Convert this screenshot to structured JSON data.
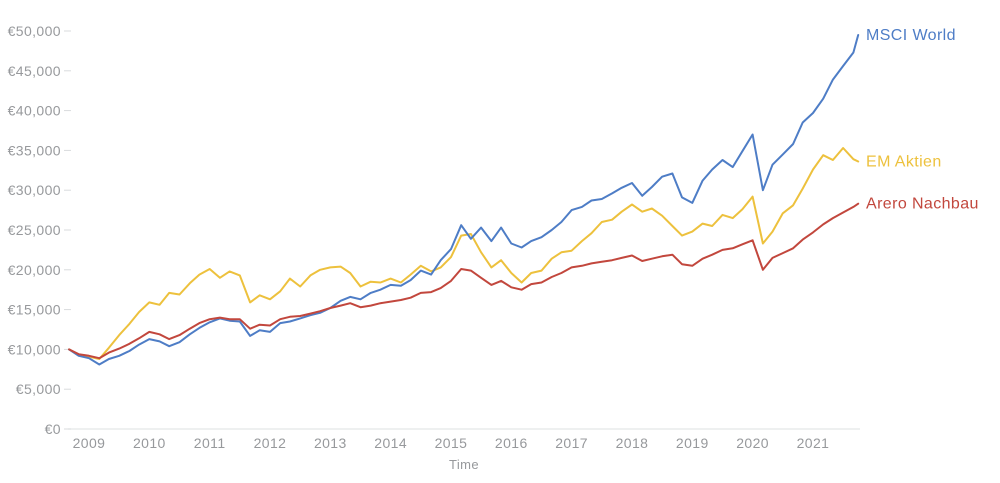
{
  "chart_data": {
    "type": "line",
    "title": "",
    "xlabel": "Time",
    "ylabel": "",
    "xlim": [
      2008.6,
      2021.8
    ],
    "ylim": [
      0,
      50000
    ],
    "grid": false,
    "legend_position": "right-end-of-line",
    "axis_color": "#e4e6e8",
    "tick_color": "#d9dbdd",
    "label_color": "#97999c",
    "xtick_values": [
      2009,
      2010,
      2011,
      2012,
      2013,
      2014,
      2015,
      2016,
      2017,
      2018,
      2019,
      2020,
      2021
    ],
    "xtick_labels": [
      "2009",
      "2010",
      "2011",
      "2012",
      "2013",
      "2014",
      "2015",
      "2016",
      "2017",
      "2018",
      "2019",
      "2020",
      "2021"
    ],
    "ytick_values": [
      0,
      5000,
      10000,
      15000,
      20000,
      25000,
      30000,
      35000,
      40000,
      45000,
      50000
    ],
    "ytick_labels": [
      "€0",
      "€5,000",
      "€10,000",
      "€15,000",
      "€20,000",
      "€25,000",
      "€30,000",
      "€35,000",
      "€40,000",
      "€45,000",
      "€50,000"
    ],
    "x": [
      2008.67,
      2008.83,
      2009,
      2009.17,
      2009.33,
      2009.5,
      2009.67,
      2009.83,
      2010,
      2010.17,
      2010.33,
      2010.5,
      2010.67,
      2010.83,
      2011,
      2011.17,
      2011.33,
      2011.5,
      2011.67,
      2011.83,
      2012,
      2012.17,
      2012.33,
      2012.5,
      2012.67,
      2012.83,
      2013,
      2013.17,
      2013.33,
      2013.5,
      2013.67,
      2013.83,
      2014,
      2014.17,
      2014.33,
      2014.5,
      2014.67,
      2014.83,
      2015,
      2015.17,
      2015.33,
      2015.5,
      2015.67,
      2015.83,
      2016,
      2016.17,
      2016.33,
      2016.5,
      2016.67,
      2016.83,
      2017,
      2017.17,
      2017.33,
      2017.5,
      2017.67,
      2017.83,
      2018,
      2018.17,
      2018.33,
      2018.5,
      2018.67,
      2018.83,
      2019,
      2019.17,
      2019.33,
      2019.5,
      2019.67,
      2019.83,
      2020,
      2020.17,
      2020.33,
      2020.5,
      2020.67,
      2020.83,
      2021,
      2021.17,
      2021.33,
      2021.5,
      2021.67,
      2021.75
    ],
    "series": [
      {
        "name": "EM Aktien",
        "color": "#edc13d",
        "values": [
          10000,
          9300,
          9100,
          8800,
          10200,
          11800,
          13200,
          14700,
          15900,
          15600,
          17100,
          16900,
          18300,
          19400,
          20100,
          19000,
          19800,
          19300,
          15900,
          16800,
          16300,
          17300,
          18900,
          17900,
          19300,
          20000,
          20300,
          20400,
          19600,
          17900,
          18500,
          18400,
          18900,
          18400,
          19400,
          20500,
          19800,
          20300,
          21600,
          24300,
          24500,
          22200,
          20300,
          21200,
          19600,
          18400,
          19600,
          19900,
          21400,
          22200,
          22400,
          23600,
          24600,
          26000,
          26300,
          27300,
          28200,
          27300,
          27700,
          26800,
          25500,
          24300,
          24800,
          25800,
          25500,
          26900,
          26500,
          27600,
          29200,
          23300,
          24800,
          27100,
          28100,
          30200,
          32600,
          34400,
          33800,
          35300,
          33900,
          33600
        ]
      },
      {
        "name": "MSCI World",
        "color": "#4e7dc6",
        "values": [
          10000,
          9200,
          8900,
          8100,
          8800,
          9200,
          9800,
          10600,
          11300,
          11000,
          10400,
          10900,
          11900,
          12700,
          13400,
          13900,
          13600,
          13500,
          11700,
          12400,
          12200,
          13300,
          13500,
          13900,
          14300,
          14600,
          15200,
          16100,
          16600,
          16300,
          17100,
          17500,
          18100,
          18000,
          18700,
          19900,
          19400,
          21200,
          22600,
          25600,
          23900,
          25300,
          23600,
          25300,
          23300,
          22800,
          23600,
          24100,
          25000,
          26000,
          27500,
          27900,
          28700,
          28900,
          29600,
          30300,
          30900,
          29300,
          30400,
          31700,
          32100,
          29100,
          28400,
          31200,
          32600,
          33800,
          32900,
          34900,
          37000,
          30000,
          33200,
          34500,
          35800,
          38500,
          39700,
          41500,
          43900,
          45600,
          47300,
          49500
        ]
      },
      {
        "name": "Arero Nachbau",
        "color": "#c2473d",
        "values": [
          10000,
          9400,
          9200,
          8900,
          9600,
          10100,
          10700,
          11400,
          12200,
          11900,
          11300,
          11800,
          12600,
          13300,
          13800,
          14000,
          13800,
          13800,
          12600,
          13100,
          13000,
          13800,
          14100,
          14200,
          14500,
          14800,
          15200,
          15500,
          15800,
          15300,
          15500,
          15800,
          16000,
          16200,
          16500,
          17100,
          17200,
          17700,
          18600,
          20100,
          19900,
          19000,
          18100,
          18600,
          17800,
          17500,
          18200,
          18400,
          19100,
          19600,
          20300,
          20500,
          20800,
          21000,
          21200,
          21500,
          21800,
          21100,
          21400,
          21700,
          21900,
          20700,
          20500,
          21400,
          21900,
          22500,
          22700,
          23200,
          23700,
          20000,
          21500,
          22100,
          22700,
          23800,
          24700,
          25700,
          26500,
          27200,
          27900,
          28300
        ]
      }
    ]
  }
}
